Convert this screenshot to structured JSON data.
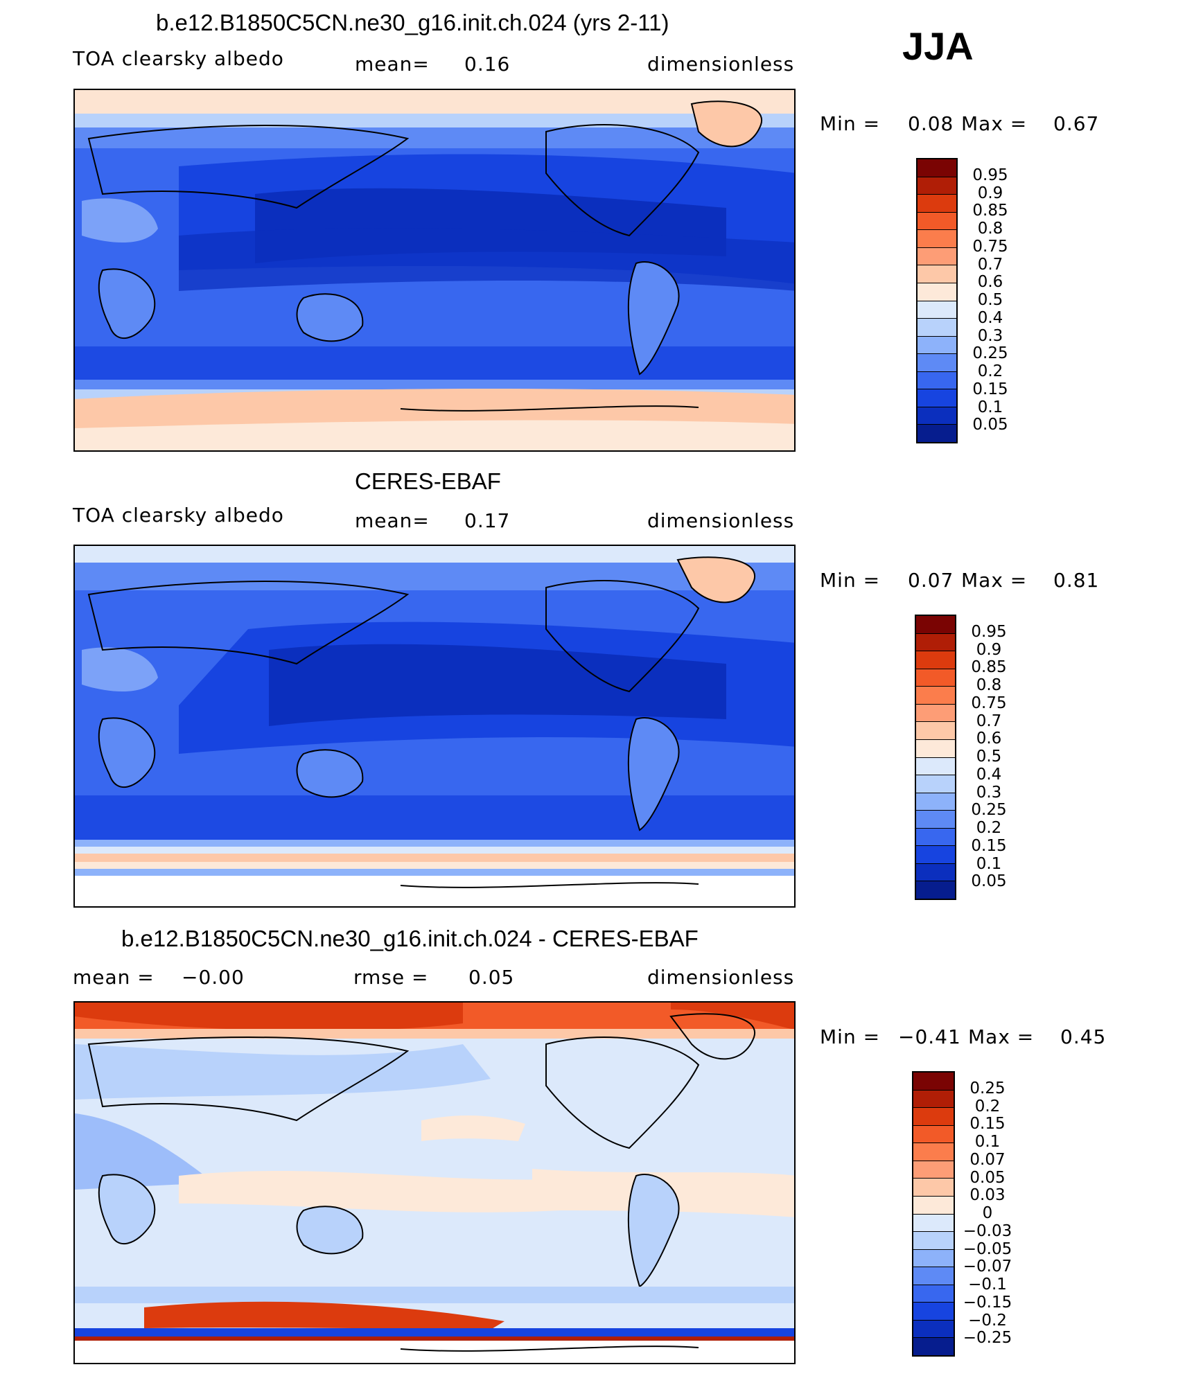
{
  "season": "JJA",
  "panels": [
    {
      "id": "model",
      "title": "b.e12.B1850C5CN.ne30_g16.init.ch.024 (yrs 2-11)",
      "left_label": "TOA clearsky albedo",
      "stat1_label": "mean=",
      "stat1_value": "0.16",
      "stat2_label": "",
      "stat2_value": "",
      "units": "dimensionless",
      "min_label": "Min =",
      "min_value": "0.08",
      "max_label": "Max =",
      "max_value": "0.67",
      "colorbar": {
        "labels": [
          "0.95",
          "0.9",
          "0.85",
          "0.8",
          "0.75",
          "0.7",
          "0.6",
          "0.5",
          "0.4",
          "0.3",
          "0.25",
          "0.2",
          "0.15",
          "0.1",
          "0.05"
        ],
        "colors": [
          "#7a0403",
          "#b01e06",
          "#dc3b0e",
          "#f25a28",
          "#fb7d4c",
          "#fd9d76",
          "#fdc8a8",
          "#fde9d9",
          "#dce9fb",
          "#b8d2fb",
          "#8db2fa",
          "#5e8af5",
          "#3867ef",
          "#1744e0",
          "#0b2fbe",
          "#061d8e"
        ]
      }
    },
    {
      "id": "obs",
      "title": "CERES-EBAF",
      "left_label": "TOA clearsky albedo",
      "stat1_label": "mean=",
      "stat1_value": "0.17",
      "stat2_label": "",
      "stat2_value": "",
      "units": "dimensionless",
      "min_label": "Min =",
      "min_value": "0.07",
      "max_label": "Max =",
      "max_value": "0.81",
      "colorbar": {
        "labels": [
          "0.95",
          "0.9",
          "0.85",
          "0.8",
          "0.75",
          "0.7",
          "0.6",
          "0.5",
          "0.4",
          "0.3",
          "0.25",
          "0.2",
          "0.15",
          "0.1",
          "0.05"
        ],
        "colors": [
          "#7a0403",
          "#b01e06",
          "#dc3b0e",
          "#f25a28",
          "#fb7d4c",
          "#fd9d76",
          "#fdc8a8",
          "#fde9d9",
          "#dce9fb",
          "#b8d2fb",
          "#8db2fa",
          "#5e8af5",
          "#3867ef",
          "#1744e0",
          "#0b2fbe",
          "#061d8e"
        ]
      }
    },
    {
      "id": "diff",
      "title": "b.e12.B1850C5CN.ne30_g16.init.ch.024 - CERES-EBAF",
      "left_label": "mean =",
      "stat1_label": "",
      "stat1_value": "−0.00",
      "stat2_label": "rmse =",
      "stat2_value": "0.05",
      "units": "dimensionless",
      "min_label": "Min =",
      "min_value": "−0.41",
      "max_label": "Max =",
      "max_value": "0.45",
      "colorbar": {
        "labels": [
          "0.25",
          "0.2",
          "0.15",
          "0.1",
          "0.07",
          "0.05",
          "0.03",
          "0",
          "−0.03",
          "−0.05",
          "−0.07",
          "−0.1",
          "−0.15",
          "−0.2",
          "−0.25"
        ],
        "colors": [
          "#7a0403",
          "#b01e06",
          "#dc3b0e",
          "#f25a28",
          "#fb7d4c",
          "#fd9d76",
          "#fdc8a8",
          "#fde9d9",
          "#dce9fb",
          "#b8d2fb",
          "#8db2fa",
          "#5e8af5",
          "#3867ef",
          "#1744e0",
          "#0b2fbe",
          "#061d8e"
        ]
      }
    }
  ]
}
